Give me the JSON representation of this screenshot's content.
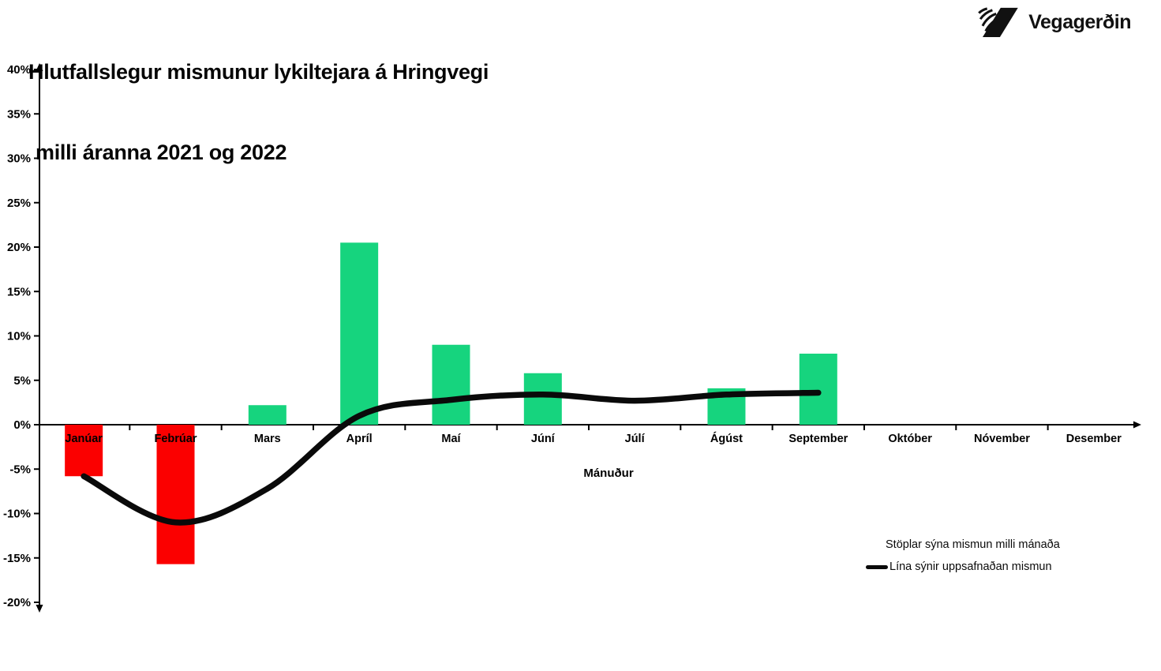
{
  "header": {
    "title_line1": "Hlutfallslegur mismunur lykiltejara á Hringvegi",
    "title_line2": "milli áranna 2021 og 2022",
    "logo_text": "Vegagerðin"
  },
  "legend": {
    "bar_label": "Stöplar sýna mismun milli mánaða",
    "line_label": "Lína sýnir uppsafnaðan mismun"
  },
  "chart_data": {
    "type": "bar+line combo",
    "title": "Hlutfallslegur mismunur lykiltejara á Hringvegi milli áranna 2021 og 2022",
    "categories": [
      "Janúar",
      "Febrúar",
      "Mars",
      "Apríl",
      "Maí",
      "Júní",
      "Júlí",
      "Ágúst",
      "September",
      "Október",
      "Nóvember",
      "Desember"
    ],
    "xlabel": "Mánuður",
    "ylabel": "",
    "ylim": [
      -20,
      40
    ],
    "ytick_step": 5,
    "ytick_format": "percent",
    "grid": false,
    "legend_position": "bottom-right",
    "series": [
      {
        "name": "Stöplar sýna mismun milli mánaða",
        "type": "bar",
        "values": [
          -5.8,
          -15.7,
          2.2,
          20.5,
          9.0,
          5.8,
          0,
          4.1,
          8.0,
          null,
          null,
          null
        ]
      },
      {
        "name": "Lína sýnir uppsafnaðan mismun",
        "type": "line",
        "values": [
          -5.8,
          -11.0,
          -7.2,
          1.0,
          2.8,
          3.4,
          2.7,
          3.4,
          3.6,
          null,
          null,
          null
        ]
      }
    ],
    "colors": {
      "bar_positive": "#16d47e",
      "bar_negative": "#fb0000",
      "line": "#0a0a0a",
      "axis": "#000000"
    }
  }
}
